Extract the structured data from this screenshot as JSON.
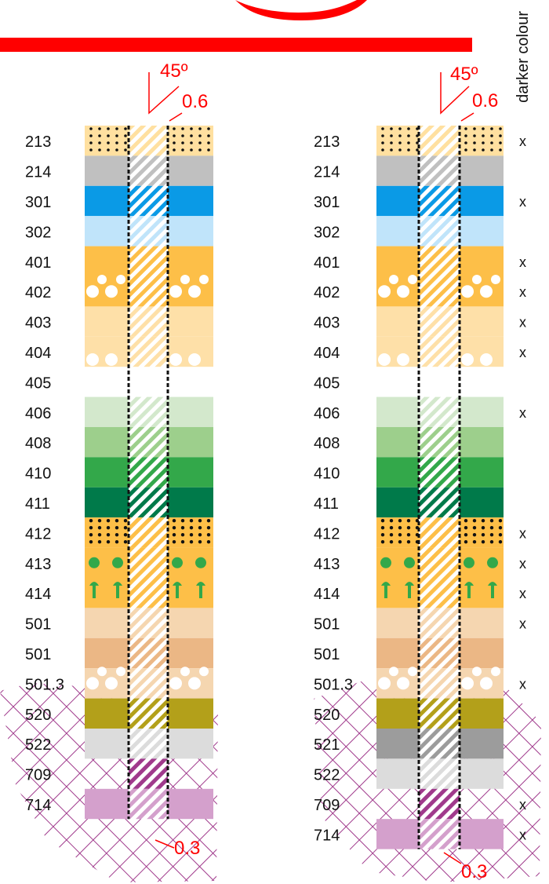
{
  "annotations": {
    "angle_left": "45º",
    "width_left": "0.6",
    "angle_right": "45º",
    "width_right": "0.6",
    "bottom_left": "0.3",
    "bottom_right": "0.3",
    "darker_colour_header": "darker colour",
    "mark": "x"
  },
  "left_column": {
    "codes": [
      "213",
      "214",
      "301",
      "302",
      "401",
      "402",
      "403",
      "404",
      "405",
      "406",
      "408",
      "410",
      "411",
      "412",
      "413",
      "414",
      "501",
      "501",
      "501.3",
      "520",
      "522",
      "709",
      "714"
    ]
  },
  "right_column": {
    "codes": [
      "213",
      "214",
      "301",
      "302",
      "401",
      "402",
      "403",
      "404",
      "405",
      "406",
      "408",
      "410",
      "411",
      "412",
      "413",
      "414",
      "501",
      "501",
      "501.3",
      "520",
      "521",
      "522",
      "709",
      "714"
    ],
    "darker_colour_marks": [
      true,
      false,
      true,
      false,
      true,
      true,
      true,
      true,
      false,
      true,
      false,
      false,
      false,
      true,
      true,
      true,
      true,
      false,
      true,
      false,
      false,
      false,
      true,
      true
    ]
  },
  "colors": {
    "red": "#ff0000",
    "hatch": "#a03a8c",
    "213": "#ffe0a0",
    "214": "#c0c0c0",
    "301": "#0a9ae6",
    "302": "#c0e4fa",
    "401": "#fdbf48",
    "402": "#fdbf48",
    "403": "#fee0a8",
    "404": "#fee0a8",
    "406": "#d3e8cc",
    "408": "#9dcf8c",
    "410": "#33a84a",
    "411": "#007a4a",
    "412": "#fdbf48",
    "413": "#fdbf48",
    "414": "#fdbf48",
    "501": "#f5d6b0",
    "501b": "#ebb785",
    "501.3": "#f5d6b0",
    "520": "#b3a01a",
    "521": "#9c9c9c",
    "522": "#dcdcdc",
    "709": "#a03a8c",
    "714": "#d4a0cc",
    "green_symbol": "#33a84a"
  }
}
